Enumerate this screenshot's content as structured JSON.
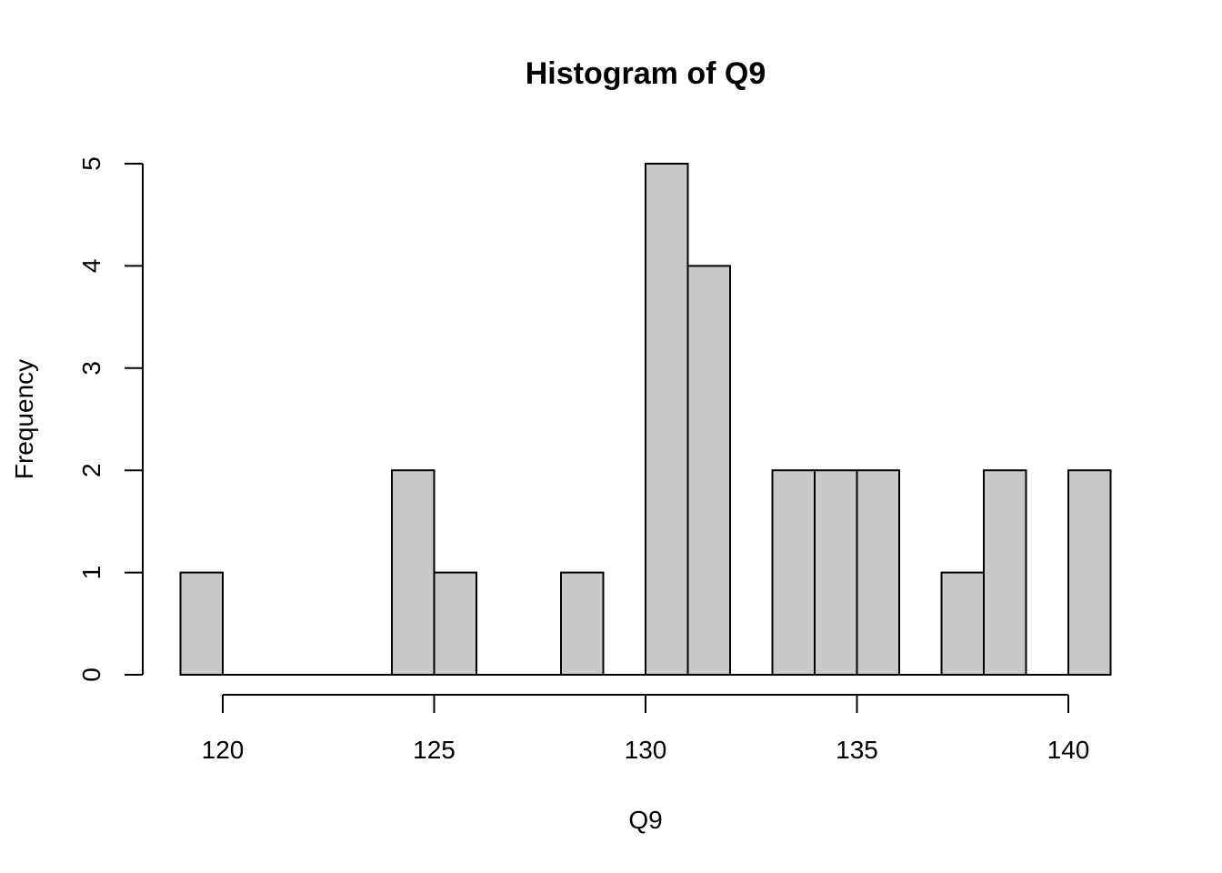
{
  "chart_data": {
    "type": "bar",
    "title": "Histogram of Q9",
    "xlabel": "Q9",
    "ylabel": "Frequency",
    "bin_edges": [
      119,
      120,
      121,
      122,
      123,
      124,
      125,
      126,
      127,
      128,
      129,
      130,
      131,
      132,
      133,
      134,
      135,
      136,
      137,
      138,
      139,
      140,
      141
    ],
    "values": [
      1,
      0,
      0,
      0,
      0,
      2,
      1,
      0,
      0,
      1,
      0,
      5,
      4,
      0,
      2,
      2,
      2,
      0,
      1,
      2,
      0,
      2
    ],
    "xticks": [
      120,
      125,
      130,
      135,
      140
    ],
    "yticks": [
      0,
      1,
      2,
      3,
      4,
      5
    ],
    "xlim": [
      120,
      140
    ],
    "ylim": [
      0,
      5
    ],
    "colors": {
      "bar_fill": "#c9c9c9",
      "bar_stroke": "#000000"
    },
    "grid": false,
    "legend": "none"
  }
}
